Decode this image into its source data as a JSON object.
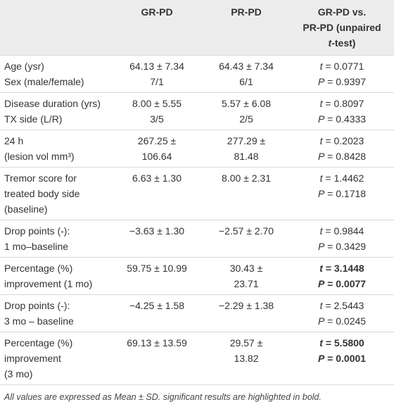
{
  "table": {
    "header": [
      [
        "GR-PD"
      ],
      [
        "PR-PD"
      ],
      [
        "GR-PD vs.",
        "PR-PD (unpaired",
        "t-test)"
      ]
    ],
    "rows": [
      {
        "cells": [
          [
            "Age (ysr)",
            "Sex (male/female)"
          ],
          [
            "64.13 ± 7.34",
            "7/1"
          ],
          [
            "64.43 ± 7.34",
            "6/1"
          ],
          [
            "t = 0.0771",
            "P = 0.9397"
          ]
        ],
        "bold": false
      },
      {
        "cells": [
          [
            "Disease duration (yrs)",
            "TX side (L/R)"
          ],
          [
            "8.00 ± 5.55",
            "3/5"
          ],
          [
            "5.57 ± 6.08",
            "2/5"
          ],
          [
            "t = 0.8097",
            "P = 0.4333"
          ]
        ],
        "bold": false
      },
      {
        "cells": [
          [
            "24 h",
            "(lesion vol mm³)"
          ],
          [
            "267.25 ±",
            "106.64"
          ],
          [
            "277.29 ±",
            "81.48"
          ],
          [
            "t = 0.2023",
            "P = 0.8428"
          ]
        ],
        "bold": false
      },
      {
        "cells": [
          [
            "Tremor score for",
            "treated body side",
            "(baseline)"
          ],
          [
            "6.63 ± 1.30"
          ],
          [
            "8.00 ± 2.31"
          ],
          [
            "t = 1.4462",
            "P = 0.1718"
          ]
        ],
        "bold": false
      },
      {
        "cells": [
          [
            "Drop points (-):",
            "1 mo–baseline"
          ],
          [
            "−3.63 ± 1.30"
          ],
          [
            "−2.57 ± 2.70"
          ],
          [
            "t = 0.9844",
            "P = 0.3429"
          ]
        ],
        "bold": false
      },
      {
        "cells": [
          [
            "Percentage (%)",
            "improvement (1 mo)"
          ],
          [
            "59.75 ± 10.99"
          ],
          [
            "30.43 ±",
            "23.71"
          ],
          [
            "t = 3.1448",
            "P = 0.0077"
          ]
        ],
        "bold": true
      },
      {
        "cells": [
          [
            "Drop points (-):",
            "3 mo – baseline"
          ],
          [
            "−4.25 ± 1.58"
          ],
          [
            "−2.29 ± 1.38"
          ],
          [
            "t = 2.5443",
            "P = 0.0245"
          ]
        ],
        "bold": false
      },
      {
        "cells": [
          [
            "Percentage (%)",
            "improvement",
            "(3 mo)"
          ],
          [
            "69.13 ± 13.59"
          ],
          [
            "29.57 ±",
            "13.82"
          ],
          [
            "t = 5.5800",
            "P = 0.0001"
          ]
        ],
        "bold": true
      }
    ]
  },
  "footnote": "All values are expressed as Mean ± SD. significant results are highlighted in bold."
}
